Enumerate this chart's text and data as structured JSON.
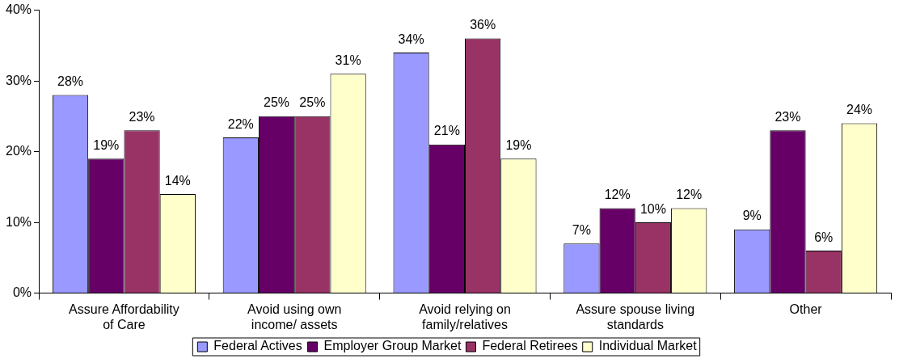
{
  "chart_data": {
    "type": "bar",
    "categories": [
      "Assure Affordability of Care",
      "Avoid using own income/ assets",
      "Avoid relying on family/relatives",
      "Assure spouse living standards",
      "Other"
    ],
    "series": [
      {
        "name": "Federal Actives",
        "color": "#9999ff",
        "values": [
          28,
          22,
          34,
          7,
          9
        ],
        "value_labels": [
          "28%",
          "22%",
          "34%",
          "7%",
          "9%"
        ]
      },
      {
        "name": "Employer Group Market",
        "color": "#660066",
        "values": [
          19,
          25,
          21,
          12,
          23
        ],
        "value_labels": [
          "19%",
          "25%",
          "21%",
          "12%",
          "23%"
        ]
      },
      {
        "name": "Federal Retirees",
        "color": "#993366",
        "values": [
          23,
          25,
          36,
          10,
          6
        ],
        "value_labels": [
          "23%",
          "25%",
          "36%",
          "10%",
          "6%"
        ]
      },
      {
        "name": "Individual Market",
        "color": "#ffffcc",
        "values": [
          14,
          31,
          19,
          12,
          24
        ],
        "value_labels": [
          "14%",
          "31%",
          "19%",
          "12%",
          "24%"
        ]
      }
    ],
    "ylim": [
      0,
      40
    ],
    "yticks": [
      {
        "value": 0,
        "label": "0%"
      },
      {
        "value": 10,
        "label": "10%"
      },
      {
        "value": 20,
        "label": "20%"
      },
      {
        "value": 30,
        "label": "30%"
      },
      {
        "value": 40,
        "label": "40%"
      }
    ],
    "grid": false,
    "legend": "bottom"
  }
}
